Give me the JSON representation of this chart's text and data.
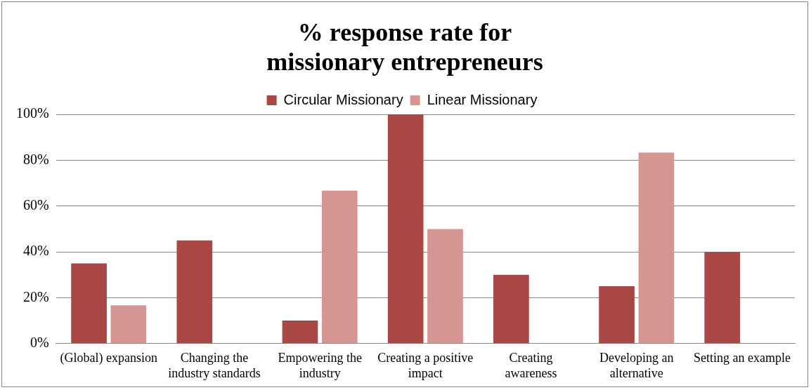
{
  "chart_data": {
    "type": "bar",
    "title": "% response rate for missionary entrepreneurs",
    "categories": [
      "(Global) expansion",
      "Changing the industry standards",
      "Empowering the industry",
      "Creating a positive impact",
      "Creating awareness",
      "Developing an alternative",
      "Setting an example"
    ],
    "series": [
      {
        "name": "Circular Missionary",
        "color": "#a94745",
        "values": [
          35,
          45,
          10,
          100,
          30,
          25,
          40
        ]
      },
      {
        "name": "Linear Missionary",
        "color": "#d49593",
        "values": [
          16.7,
          0,
          66.7,
          50,
          0,
          83.3,
          0
        ]
      }
    ],
    "ylim": [
      0,
      100
    ],
    "yticks": [
      {
        "value": 0,
        "label": "0%"
      },
      {
        "value": 20,
        "label": "20%"
      },
      {
        "value": 40,
        "label": "40%"
      },
      {
        "value": 60,
        "label": "60%"
      },
      {
        "value": 80,
        "label": "80%"
      },
      {
        "value": 100,
        "label": "100%"
      }
    ],
    "grid": "y",
    "legend": "top"
  }
}
